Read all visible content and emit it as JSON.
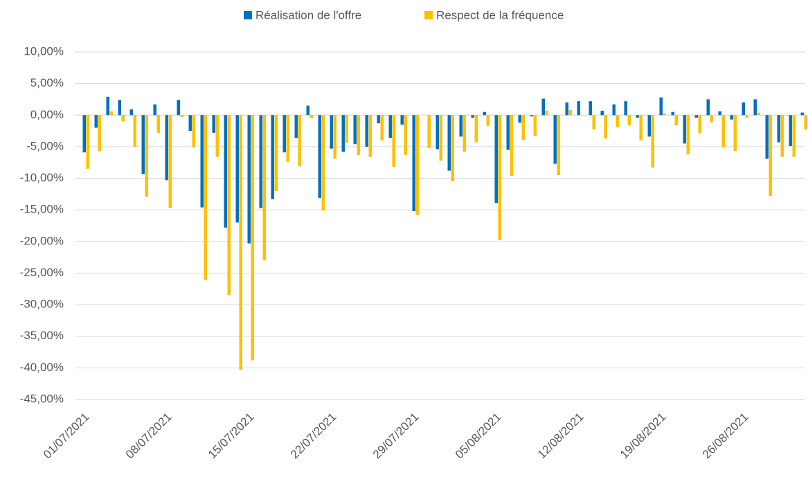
{
  "chart_data": {
    "type": "bar",
    "categories": [
      "01/07/2021",
      null,
      null,
      null,
      null,
      null,
      null,
      "08/07/2021",
      null,
      null,
      null,
      null,
      null,
      null,
      "15/07/2021",
      null,
      null,
      null,
      null,
      null,
      null,
      "22/07/2021",
      null,
      null,
      null,
      null,
      null,
      null,
      "29/07/2021",
      null,
      null,
      null,
      null,
      null,
      null,
      "05/08/2021",
      null,
      null,
      null,
      null,
      null,
      null,
      "12/08/2021",
      null,
      null,
      null,
      null,
      null,
      null,
      "19/08/2021",
      null,
      null,
      null,
      null,
      null,
      null,
      "26/08/2021",
      null,
      null,
      null,
      null,
      null
    ],
    "series": [
      {
        "name": "Réalisation de l'offre",
        "color": "#0070c0",
        "values": [
          -5.9,
          -2.0,
          2.9,
          2.4,
          0.9,
          -9.3,
          1.7,
          -10.3,
          2.4,
          -2.5,
          -14.6,
          -2.8,
          -17.8,
          -17.0,
          -20.3,
          -14.7,
          -13.3,
          -5.9,
          -3.6,
          1.5,
          -13.1,
          -5.3,
          -5.8,
          -4.6,
          -5.0,
          -1.3,
          -3.6,
          -1.5,
          -15.2,
          0,
          -5.4,
          -8.8,
          -3.4,
          -0.4,
          0.5,
          -13.9,
          -5.5,
          -1.2,
          -0.2,
          2.6,
          -7.7,
          2.0,
          2.2,
          2.2,
          0.7,
          1.7,
          2.2,
          -0.4,
          -3.4,
          2.8,
          0.5,
          -4.5,
          -0.4,
          2.5,
          0.6,
          -0.7,
          2.0,
          2.5,
          -6.9,
          -4.3,
          -4.9,
          0.4
        ]
      },
      {
        "name": "Respect de la fréquence",
        "color": "#ffc000",
        "values": [
          -8.5,
          -5.7,
          0.6,
          -1.0,
          -5.0,
          -12.9,
          -2.8,
          -14.7,
          -0.3,
          -5.1,
          -26.1,
          -6.6,
          -28.5,
          -40.3,
          -38.8,
          -23.0,
          -12.0,
          -7.4,
          -8.1,
          -0.5,
          -15.1,
          -6.9,
          -4.4,
          -6.3,
          -6.6,
          -4.0,
          -8.2,
          -6.3,
          -15.8,
          -5.2,
          -7.2,
          -10.5,
          -5.8,
          -4.3,
          -1.7,
          -19.8,
          -9.6,
          -3.9,
          -3.3,
          0.7,
          -9.5,
          0.8,
          0,
          -2.3,
          -3.7,
          -1.9,
          -1.6,
          -4.0,
          -8.3,
          0.3,
          -1.6,
          -6.2,
          -2.9,
          -1.1,
          -5.1,
          -5.7,
          -0.4,
          0.4,
          -12.8,
          -6.6,
          -6.6,
          -2.3
        ]
      }
    ],
    "ylim": [
      -45,
      10
    ],
    "yticks": [
      {
        "value": -45,
        "label": "-45,00%"
      },
      {
        "value": -40,
        "label": "-40,00%"
      },
      {
        "value": -35,
        "label": "-35,00%"
      },
      {
        "value": -30,
        "label": "-30,00%"
      },
      {
        "value": -25,
        "label": "-25,00%"
      },
      {
        "value": -20,
        "label": "-20,00%"
      },
      {
        "value": -15,
        "label": "-15,00%"
      },
      {
        "value": -10,
        "label": "-10,00%"
      },
      {
        "value": -5,
        "label": "-5,00%"
      },
      {
        "value": 0,
        "label": "0,00%"
      },
      {
        "value": 5,
        "label": "5,00%"
      },
      {
        "value": 10,
        "label": "10,00%"
      }
    ],
    "grid": true,
    "legend": "top"
  }
}
